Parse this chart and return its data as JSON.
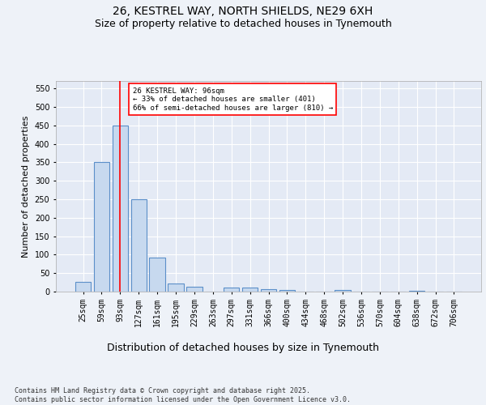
{
  "title_line1": "26, KESTREL WAY, NORTH SHIELDS, NE29 6XH",
  "title_line2": "Size of property relative to detached houses in Tynemouth",
  "xlabel": "Distribution of detached houses by size in Tynemouth",
  "ylabel": "Number of detached properties",
  "categories": [
    "25sqm",
    "59sqm",
    "93sqm",
    "127sqm",
    "161sqm",
    "195sqm",
    "229sqm",
    "263sqm",
    "297sqm",
    "331sqm",
    "366sqm",
    "400sqm",
    "434sqm",
    "468sqm",
    "502sqm",
    "536sqm",
    "570sqm",
    "604sqm",
    "638sqm",
    "672sqm",
    "706sqm"
  ],
  "values": [
    27,
    350,
    450,
    250,
    93,
    23,
    13,
    0,
    11,
    10,
    7,
    5,
    0,
    0,
    5,
    0,
    0,
    0,
    3,
    0,
    0
  ],
  "bar_color": "#c7d9ef",
  "bar_edge_color": "#5b8fc9",
  "red_line_x": 2,
  "annotation_text": "26 KESTREL WAY: 96sqm\n← 33% of detached houses are smaller (401)\n66% of semi-detached houses are larger (810) →",
  "annotation_box_color": "white",
  "annotation_box_edge": "red",
  "ylim": [
    0,
    570
  ],
  "yticks": [
    0,
    50,
    100,
    150,
    200,
    250,
    300,
    350,
    400,
    450,
    500,
    550
  ],
  "footer_text": "Contains HM Land Registry data © Crown copyright and database right 2025.\nContains public sector information licensed under the Open Government Licence v3.0.",
  "bg_color": "#eef2f8",
  "plot_bg_color": "#e4eaf5",
  "grid_color": "white",
  "title_fontsize": 10,
  "subtitle_fontsize": 9,
  "axis_label_fontsize": 8,
  "tick_fontsize": 7,
  "footer_fontsize": 6
}
